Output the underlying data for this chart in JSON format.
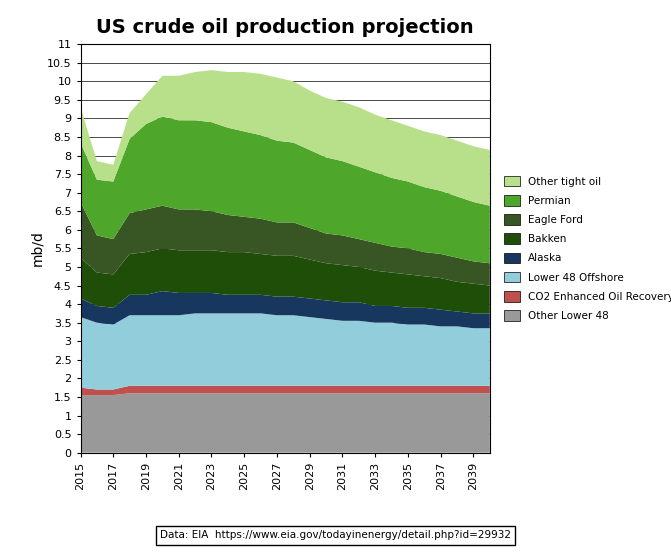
{
  "title": "US crude oil production projection",
  "ylabel": "mb/d",
  "years": [
    2015,
    2016,
    2017,
    2018,
    2019,
    2020,
    2021,
    2022,
    2023,
    2024,
    2025,
    2026,
    2027,
    2028,
    2029,
    2030,
    2031,
    2032,
    2033,
    2034,
    2035,
    2036,
    2037,
    2038,
    2039,
    2040
  ],
  "series": {
    "Other Lower 48": [
      1.55,
      1.55,
      1.55,
      1.6,
      1.6,
      1.6,
      1.6,
      1.6,
      1.6,
      1.6,
      1.6,
      1.6,
      1.6,
      1.6,
      1.6,
      1.6,
      1.6,
      1.6,
      1.6,
      1.6,
      1.6,
      1.6,
      1.6,
      1.6,
      1.6,
      1.6
    ],
    "CO2 Enhanced Oil Recovery": [
      0.2,
      0.15,
      0.15,
      0.2,
      0.2,
      0.2,
      0.2,
      0.2,
      0.2,
      0.2,
      0.2,
      0.2,
      0.2,
      0.2,
      0.2,
      0.2,
      0.2,
      0.2,
      0.2,
      0.2,
      0.2,
      0.2,
      0.2,
      0.2,
      0.2,
      0.2
    ],
    "Lower 48 Offshore": [
      1.9,
      1.8,
      1.75,
      1.9,
      1.9,
      1.9,
      1.9,
      1.95,
      1.95,
      1.95,
      1.95,
      1.95,
      1.9,
      1.9,
      1.85,
      1.8,
      1.75,
      1.75,
      1.7,
      1.7,
      1.65,
      1.65,
      1.6,
      1.6,
      1.55,
      1.55
    ],
    "Alaska": [
      0.5,
      0.45,
      0.45,
      0.55,
      0.55,
      0.65,
      0.6,
      0.55,
      0.55,
      0.5,
      0.5,
      0.5,
      0.5,
      0.5,
      0.5,
      0.5,
      0.5,
      0.5,
      0.45,
      0.45,
      0.45,
      0.45,
      0.45,
      0.4,
      0.4,
      0.4
    ],
    "Bakken": [
      1.1,
      0.9,
      0.9,
      1.1,
      1.15,
      1.15,
      1.15,
      1.15,
      1.15,
      1.15,
      1.15,
      1.1,
      1.1,
      1.1,
      1.05,
      1.0,
      1.0,
      0.95,
      0.95,
      0.9,
      0.9,
      0.85,
      0.85,
      0.8,
      0.8,
      0.75
    ],
    "Eagle Ford": [
      1.5,
      1.0,
      0.95,
      1.1,
      1.15,
      1.15,
      1.1,
      1.1,
      1.05,
      1.0,
      0.95,
      0.95,
      0.9,
      0.9,
      0.85,
      0.8,
      0.8,
      0.75,
      0.75,
      0.7,
      0.7,
      0.65,
      0.65,
      0.65,
      0.6,
      0.6
    ],
    "Permian": [
      1.6,
      1.5,
      1.55,
      2.0,
      2.3,
      2.4,
      2.4,
      2.4,
      2.4,
      2.35,
      2.3,
      2.25,
      2.2,
      2.15,
      2.1,
      2.05,
      2.0,
      1.95,
      1.9,
      1.85,
      1.8,
      1.75,
      1.7,
      1.65,
      1.6,
      1.55
    ],
    "Other tight oil": [
      0.95,
      0.5,
      0.45,
      0.7,
      0.8,
      1.1,
      1.2,
      1.3,
      1.4,
      1.5,
      1.6,
      1.65,
      1.7,
      1.65,
      1.6,
      1.6,
      1.6,
      1.6,
      1.55,
      1.55,
      1.5,
      1.5,
      1.5,
      1.5,
      1.5,
      1.5
    ]
  },
  "colors": {
    "Other Lower 48": "#999999",
    "CO2 Enhanced Oil Recovery": "#c0504d",
    "Lower 48 Offshore": "#92cddc",
    "Alaska": "#17375e",
    "Bakken": "#1f4e09",
    "Eagle Ford": "#375623",
    "Permian": "#4ea72a",
    "Other tight oil": "#b8e08a"
  },
  "legend_order": [
    "Other tight oil",
    "Permian",
    "Eagle Ford",
    "Bakken",
    "Alaska",
    "Lower 48 Offshore",
    "CO2 Enhanced Oil Recovery",
    "Other Lower 48"
  ],
  "ylim": [
    0,
    11
  ],
  "yticks": [
    0,
    0.5,
    1.0,
    1.5,
    2.0,
    2.5,
    3.0,
    3.5,
    4.0,
    4.5,
    5.0,
    5.5,
    6.0,
    6.5,
    7.0,
    7.5,
    8.0,
    8.5,
    9.0,
    9.5,
    10.0,
    10.5,
    11.0
  ],
  "source_text": "Data: EIA  https://www.eia.gov/todayinenergy/detail.php?id=29932",
  "source_url": "https://www.eia.gov/todayinenergy/detail.php?id=29932",
  "background_color": "#ffffff"
}
